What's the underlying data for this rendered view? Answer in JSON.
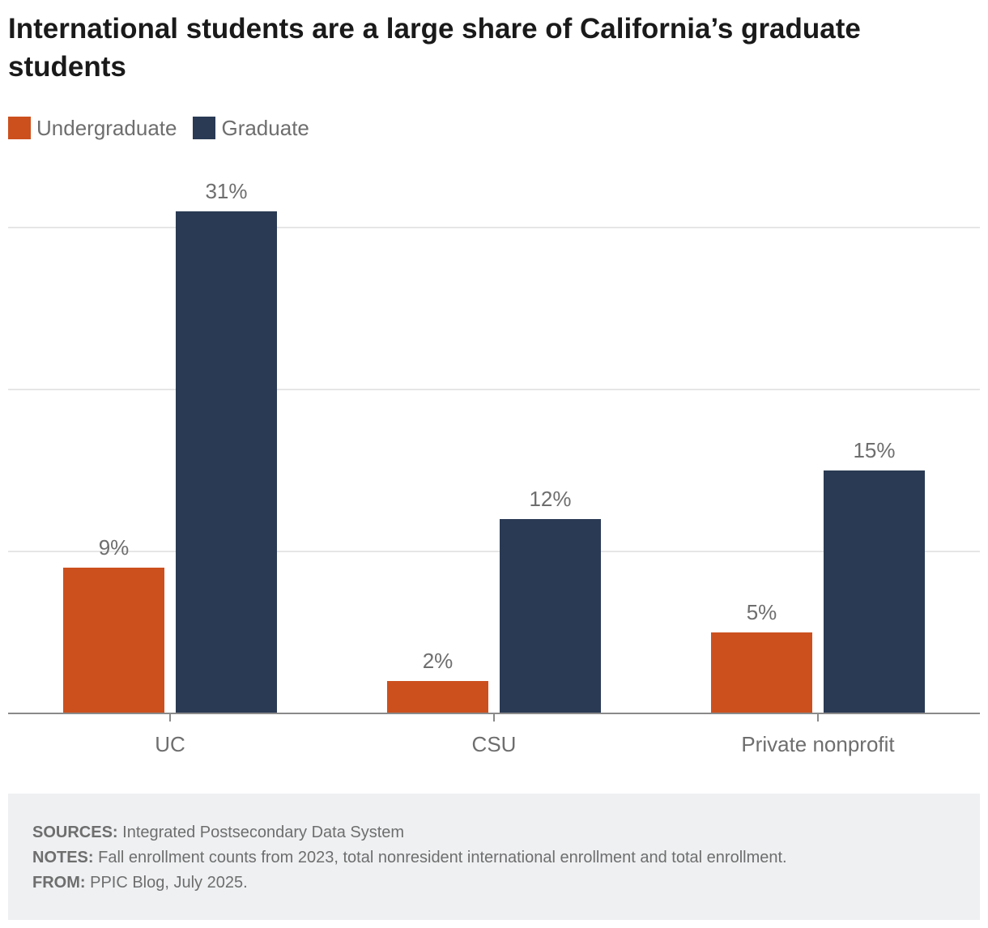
{
  "title": "International students are a large share of California’s graduate students",
  "legend": [
    {
      "label": "Undergraduate",
      "color": "#cc501e"
    },
    {
      "label": "Graduate",
      "color": "#2a3a54"
    }
  ],
  "chart_data": {
    "type": "bar",
    "title": "International students are a large share of California’s graduate students",
    "categories": [
      "UC",
      "CSU",
      "Private nonprofit"
    ],
    "series": [
      {
        "name": "Undergraduate",
        "color": "#cc501e",
        "values": [
          9,
          2,
          5
        ],
        "labels": [
          "9%",
          "2%",
          "5%"
        ]
      },
      {
        "name": "Graduate",
        "color": "#2a3a54",
        "values": [
          31,
          12,
          15
        ],
        "labels": [
          "31%",
          "12%",
          "15%"
        ]
      }
    ],
    "xlabel": "",
    "ylabel": "",
    "ylim": [
      0,
      30
    ],
    "gridlines": [
      10,
      20,
      30
    ],
    "grid": true,
    "y_tick_labels_shown": false,
    "legend_position": "top-left",
    "value_unit": "%"
  },
  "footer": {
    "sources_label": "SOURCES:",
    "sources_text": " Integrated Postsecondary Data System",
    "notes_label": "NOTES:",
    "notes_text": " Fall enrollment counts from 2023, total nonresident international enrollment and total enrollment.",
    "from_label": "FROM:",
    "from_text": " PPIC Blog, July 2025."
  }
}
